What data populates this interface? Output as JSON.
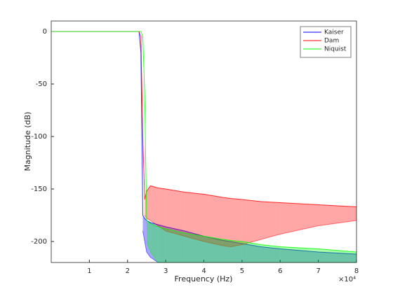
{
  "chart_data": {
    "type": "band-line",
    "x_label": "Frequency (Hz)",
    "y_label": "Magnitude (dB)",
    "x_multiplier": "×10⁴",
    "xlim": [
      0,
      80000
    ],
    "ylim": [
      -220,
      10
    ],
    "xticks": [
      {
        "value": 10000,
        "label": "1"
      },
      {
        "value": 20000,
        "label": "2"
      },
      {
        "value": 30000,
        "label": "3"
      },
      {
        "value": 40000,
        "label": "4"
      },
      {
        "value": 50000,
        "label": "5"
      },
      {
        "value": 60000,
        "label": "6"
      },
      {
        "value": 70000,
        "label": "7"
      },
      {
        "value": 80000,
        "label": "8"
      }
    ],
    "yticks": [
      0,
      -50,
      -100,
      -150,
      -200
    ],
    "legend": "northeast",
    "x": [
      0,
      10000,
      20000,
      23000,
      23500,
      24000,
      24500,
      25000,
      26000,
      28000,
      30000,
      35000,
      40000,
      45000,
      47000,
      50000,
      55000,
      60000,
      70000,
      80000
    ],
    "series": [
      {
        "name": "Kaiser",
        "color": "#0000ff",
        "values": [
          0,
          0,
          0,
          0,
          -20,
          -175,
          -178,
          -180,
          -182,
          -184,
          -186,
          -190,
          -195,
          -199,
          -200,
          -202,
          -205,
          -207,
          -210,
          -212
        ],
        "lower": [
          null,
          null,
          null,
          null,
          null,
          -190,
          -200,
          -210,
          -215,
          -220,
          -220,
          -220,
          -220,
          -220,
          -220,
          -220,
          -220,
          -220,
          -220,
          -220
        ]
      },
      {
        "name": "Dam",
        "color": "#ff0000",
        "values": [
          0,
          0,
          0,
          0,
          -5,
          -100,
          -160,
          -152,
          -147,
          -149,
          -150,
          -153,
          -155,
          -158,
          -159,
          -160,
          -162,
          -163,
          -165,
          -167
        ],
        "lower": [
          null,
          null,
          null,
          null,
          null,
          null,
          -175,
          -178,
          -180,
          -185,
          -190,
          -195,
          -200,
          -204,
          -205,
          -203,
          -198,
          -193,
          -185,
          -180
        ]
      },
      {
        "name": "Niquist",
        "color": "#00ff00",
        "values": [
          0,
          0,
          0,
          0,
          0,
          -5,
          -60,
          -180,
          -183,
          -186,
          -188,
          -192,
          -195,
          -198,
          -199,
          -200,
          -203,
          -205,
          -207,
          -210
        ],
        "lower": [
          null,
          null,
          null,
          null,
          null,
          null,
          null,
          -200,
          -210,
          -220,
          -220,
          -220,
          -220,
          -220,
          -220,
          -220,
          -220,
          -220,
          -220,
          -220
        ]
      }
    ]
  }
}
